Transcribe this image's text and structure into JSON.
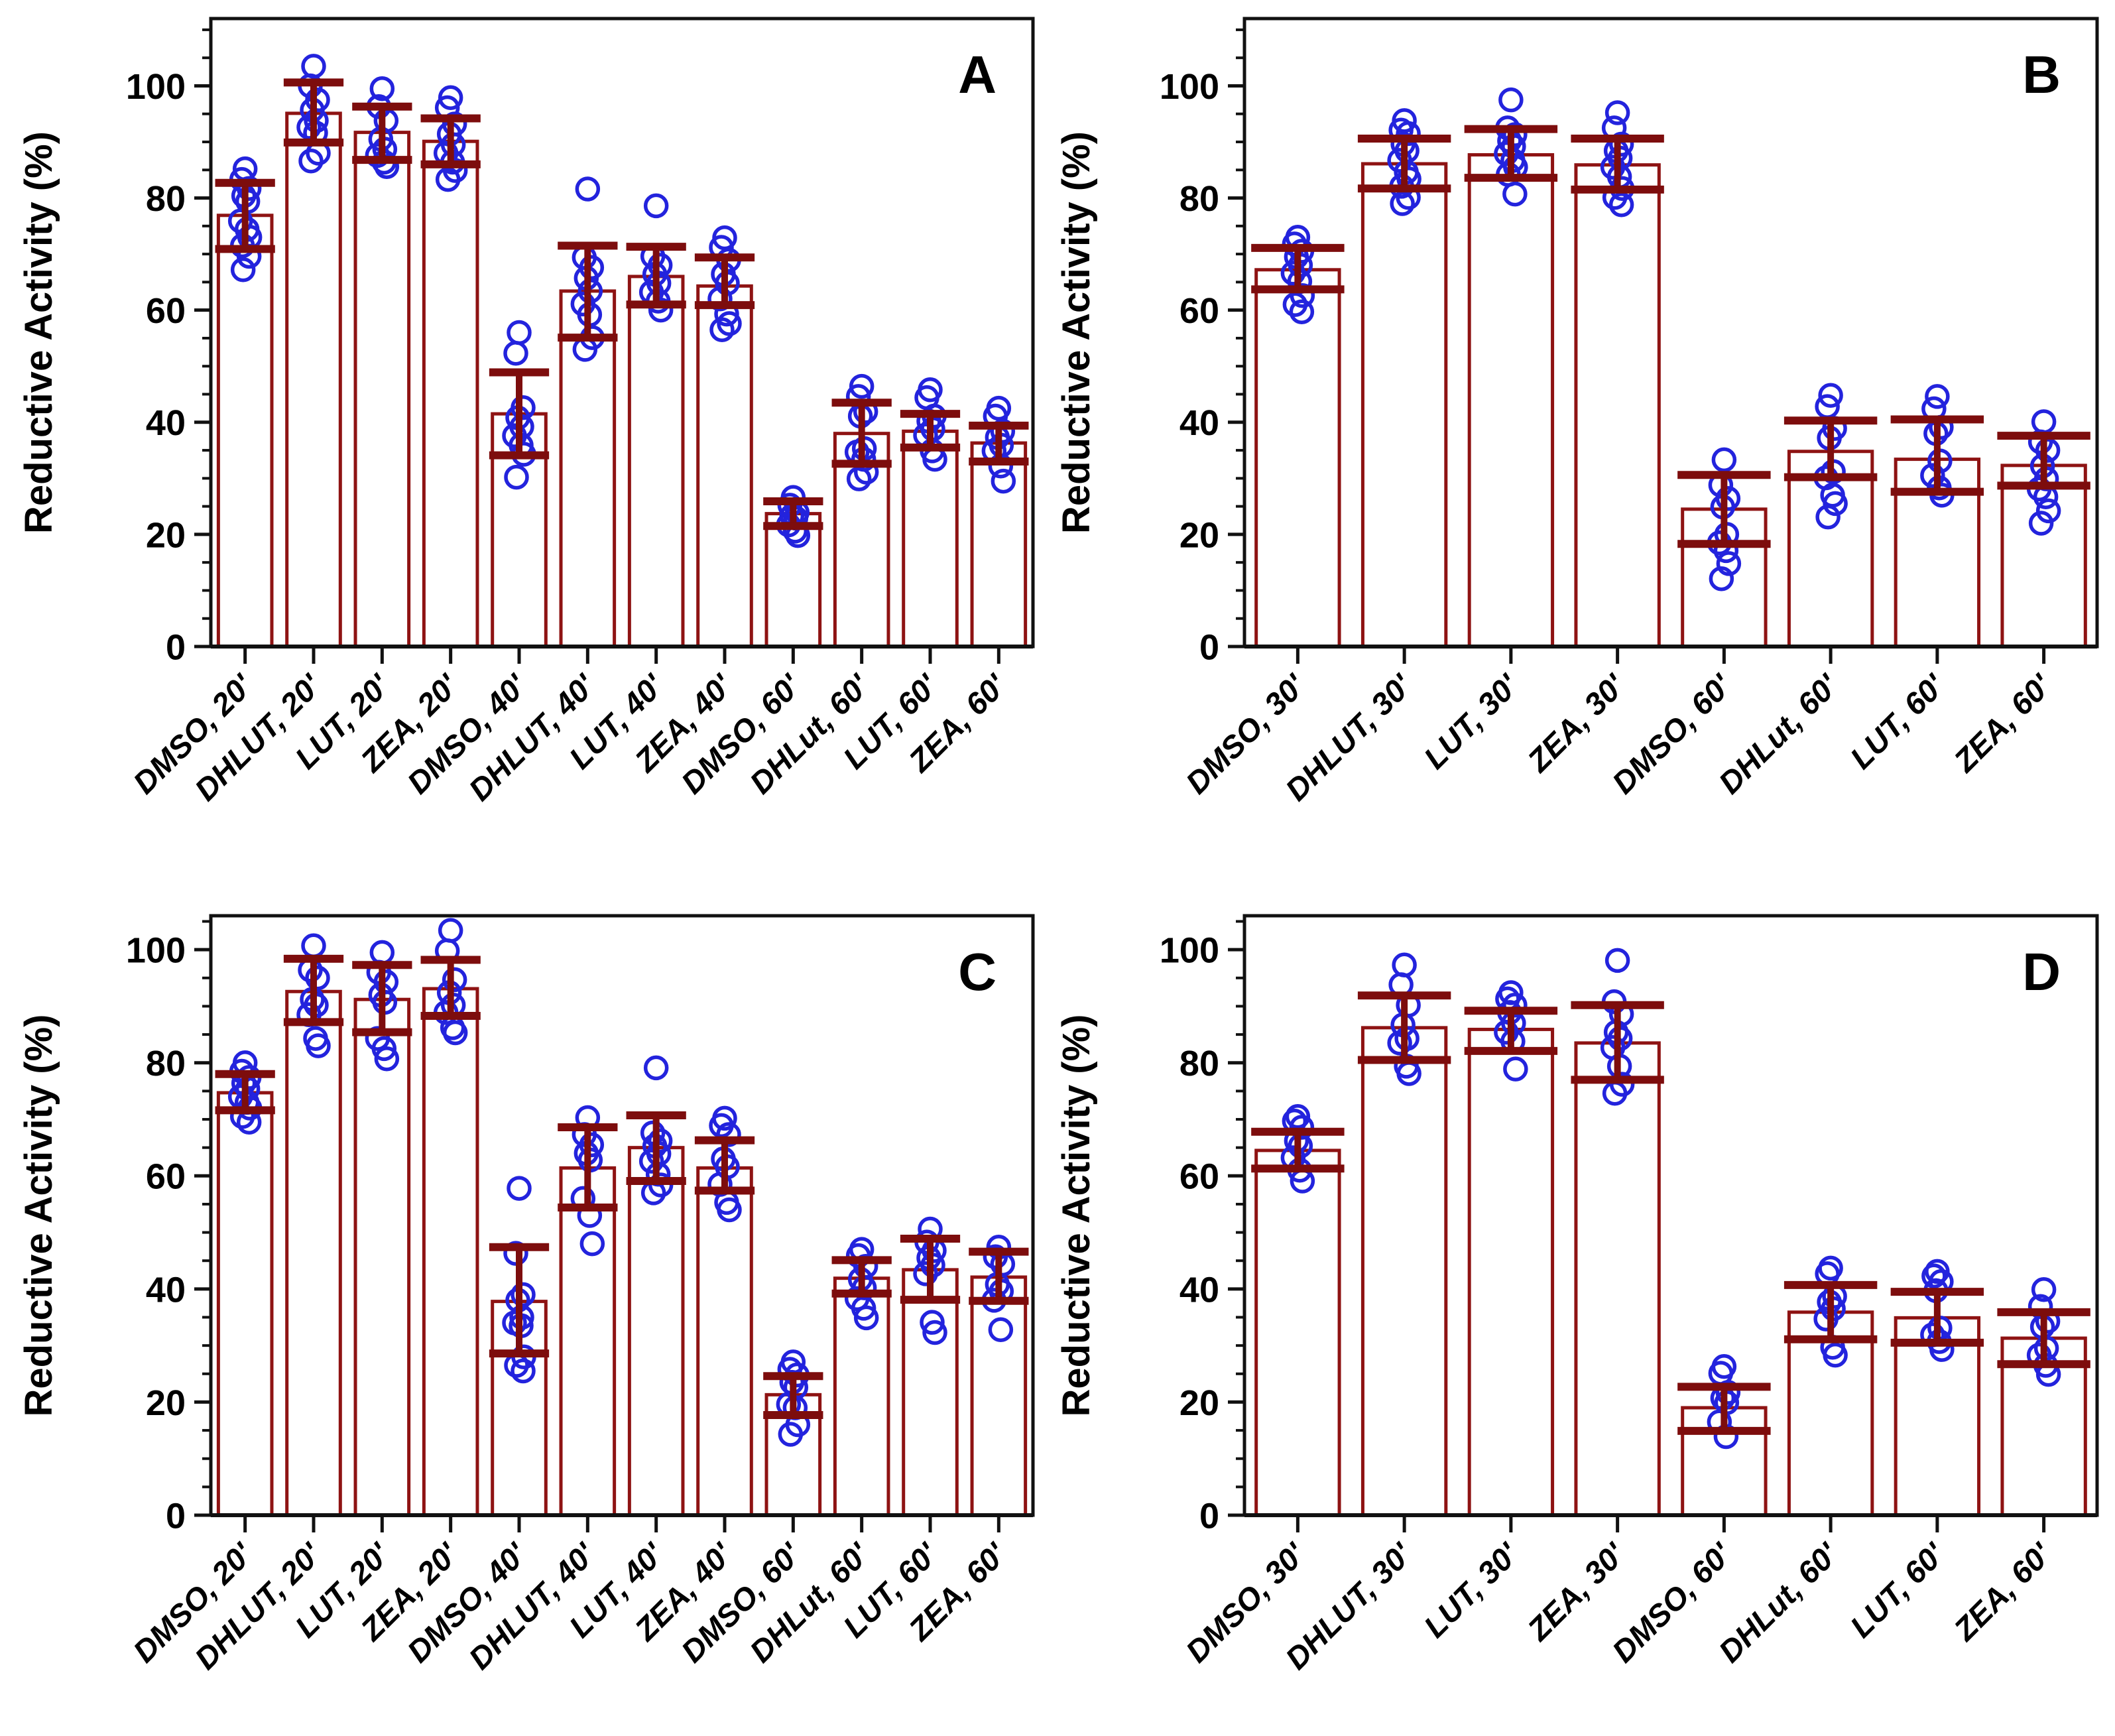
{
  "colors": {
    "bar_outline": "#8e1313",
    "error_bar": "#7d0d0d",
    "point": "#2323dd",
    "axis": "#111111",
    "text": "#000000"
  },
  "chart_data": [
    {
      "type": "bar",
      "panel_label": "A",
      "ylabel": "Reductive Activity (%)",
      "xlabel": "",
      "ylim": [
        0,
        112
      ],
      "yticks": [
        0,
        20,
        40,
        60,
        80,
        100
      ],
      "minor_tick_step": 5,
      "grid": false,
      "legend": "none",
      "categories": [
        "DMSO, 20'",
        "DHLUT, 20'",
        "LUT, 20'",
        "ZEA, 20'",
        "DMSO, 40'",
        "DHLUT, 40'",
        "LUT, 40'",
        "ZEA, 40'",
        "DMSO, 60'",
        "DHLut, 60'",
        "LUT, 60'",
        "ZEA, 60'"
      ],
      "bars": [
        {
          "category": "DMSO, 20'",
          "value": 76.9,
          "err_lo": 70.9,
          "err_hi": 82.7,
          "points": [
            85.2,
            83.3,
            81.7,
            80.4,
            79.4,
            75.9,
            74.4,
            73.0,
            71.5,
            69.6,
            67.2
          ]
        },
        {
          "category": "DHLUT, 20'",
          "value": 95.1,
          "err_lo": 89.9,
          "err_hi": 100.6,
          "points": [
            103.5,
            100.0,
            97.5,
            95.7,
            93.8,
            92.6,
            91.6,
            88.0,
            86.6
          ]
        },
        {
          "category": "LUT, 20'",
          "value": 91.7,
          "err_lo": 86.8,
          "err_hi": 96.3,
          "points": [
            99.5,
            96.3,
            93.8,
            90.5,
            88.7,
            87.6,
            86.4,
            85.6
          ]
        },
        {
          "category": "ZEA, 20'",
          "value": 90.1,
          "err_lo": 86.0,
          "err_hi": 94.2,
          "points": [
            97.9,
            96.1,
            93.2,
            91.4,
            89.5,
            88.0,
            86.4,
            84.9,
            83.3
          ]
        },
        {
          "category": "DMSO, 40'",
          "value": 41.5,
          "err_lo": 34.1,
          "err_hi": 48.9,
          "points": [
            56.0,
            52.3,
            42.6,
            40.8,
            39.2,
            37.6,
            35.9,
            34.3,
            30.2
          ]
        },
        {
          "category": "DHLUT, 40'",
          "value": 63.4,
          "err_lo": 55.1,
          "err_hi": 71.5,
          "points": [
            81.6,
            69.4,
            67.6,
            65.7,
            63.4,
            61.1,
            59.2,
            55.1,
            53.0
          ]
        },
        {
          "category": "LUT, 40'",
          "value": 66.0,
          "err_lo": 61.0,
          "err_hi": 71.3,
          "points": [
            78.6,
            69.6,
            68.0,
            66.4,
            64.8,
            63.2,
            61.6,
            60.0
          ]
        },
        {
          "category": "ZEA, 40'",
          "value": 64.3,
          "err_lo": 60.9,
          "err_hi": 69.4,
          "points": [
            72.9,
            71.2,
            68.9,
            66.4,
            64.8,
            62.0,
            59.3,
            57.6,
            56.5
          ]
        },
        {
          "category": "DMSO, 60'",
          "value": 23.7,
          "err_lo": 21.5,
          "err_hi": 25.9,
          "points": [
            26.6,
            25.2,
            23.9,
            23.3,
            22.9,
            21.7,
            20.6,
            19.8
          ]
        },
        {
          "category": "DHLut, 60'",
          "value": 38.0,
          "err_lo": 32.6,
          "err_hi": 43.5,
          "points": [
            46.4,
            44.6,
            41.9,
            41.1,
            35.3,
            34.7,
            33.4,
            31.1,
            29.9
          ]
        },
        {
          "category": "LUT, 60'",
          "value": 38.4,
          "err_lo": 35.5,
          "err_hi": 41.5,
          "points": [
            45.8,
            44.4,
            41.1,
            40.2,
            38.8,
            37.7,
            34.9,
            33.4
          ]
        },
        {
          "category": "ZEA, 60'",
          "value": 36.3,
          "err_lo": 33.0,
          "err_hi": 39.4,
          "points": [
            42.5,
            41.1,
            38.4,
            37.3,
            35.9,
            34.9,
            32.2,
            29.5
          ]
        }
      ]
    },
    {
      "type": "bar",
      "panel_label": "B",
      "ylabel": "Reductive Activity (%)",
      "xlabel": "",
      "ylim": [
        0,
        112
      ],
      "yticks": [
        0,
        20,
        40,
        60,
        80,
        100
      ],
      "minor_tick_step": 5,
      "grid": false,
      "legend": "none",
      "categories": [
        "DMSO, 30'",
        "DHLUT, 30'",
        "LUT, 30'",
        "ZEA, 30'",
        "DMSO, 60'",
        "DHLut, 60'",
        "LUT, 60'",
        "ZEA, 60'"
      ],
      "bars": [
        {
          "category": "DMSO, 30'",
          "value": 67.2,
          "err_lo": 63.7,
          "err_hi": 71.1,
          "points": [
            73.0,
            71.8,
            70.5,
            69.5,
            68.0,
            66.6,
            65.1,
            62.6,
            61.0,
            59.7
          ]
        },
        {
          "category": "DHLUT, 30'",
          "value": 86.1,
          "err_lo": 81.7,
          "err_hi": 90.6,
          "points": [
            93.8,
            92.1,
            91.5,
            89.6,
            88.4,
            86.7,
            84.6,
            83.4,
            82.1,
            80.1,
            79.0
          ]
        },
        {
          "category": "LUT, 30'",
          "value": 87.7,
          "err_lo": 83.6,
          "err_hi": 92.3,
          "points": [
            97.5,
            92.5,
            91.3,
            90.2,
            89.2,
            87.9,
            86.7,
            85.5,
            84.2,
            80.7
          ]
        },
        {
          "category": "ZEA, 30'",
          "value": 85.9,
          "err_lo": 81.5,
          "err_hi": 90.6,
          "points": [
            95.2,
            92.5,
            89.6,
            88.4,
            87.1,
            85.5,
            83.8,
            81.7,
            80.1,
            78.8
          ]
        },
        {
          "category": "DMSO, 60'",
          "value": 24.5,
          "err_lo": 18.3,
          "err_hi": 30.6,
          "points": [
            33.3,
            28.8,
            26.4,
            24.9,
            20.0,
            18.5,
            17.1,
            14.8,
            12.1
          ]
        },
        {
          "category": "DHLut, 60'",
          "value": 34.8,
          "err_lo": 30.2,
          "err_hi": 40.3,
          "points": [
            44.8,
            42.8,
            38.9,
            37.2,
            31.2,
            30.1,
            27.0,
            25.5,
            23.1
          ]
        },
        {
          "category": "LUT, 60'",
          "value": 33.4,
          "err_lo": 27.6,
          "err_hi": 40.5,
          "points": [
            44.6,
            42.4,
            39.1,
            38.0,
            33.1,
            30.5,
            28.3,
            27.0
          ]
        },
        {
          "category": "ZEA, 60'",
          "value": 32.3,
          "err_lo": 28.7,
          "err_hi": 37.6,
          "points": [
            40.1,
            36.5,
            35.0,
            32.2,
            29.9,
            28.1,
            26.7,
            24.2,
            22.0
          ]
        }
      ]
    },
    {
      "type": "bar",
      "panel_label": "C",
      "ylabel": "Reductive Activity (%)",
      "xlabel": "",
      "ylim": [
        0,
        106
      ],
      "yticks": [
        0,
        20,
        40,
        60,
        80,
        100
      ],
      "minor_tick_step": 5,
      "grid": false,
      "legend": "none",
      "categories": [
        "DMSO, 20'",
        "DHLUT, 20'",
        "LUT, 20'",
        "ZEA, 20'",
        "DMSO, 40'",
        "DHLUT, 40'",
        "LUT, 40'",
        "ZEA, 40'",
        "DMSO, 60'",
        "DHLut, 60'",
        "LUT, 60'",
        "ZEA, 60'"
      ],
      "bars": [
        {
          "category": "DMSO, 20'",
          "value": 74.7,
          "err_lo": 71.6,
          "err_hi": 78.0,
          "points": [
            80.0,
            78.5,
            77.4,
            76.4,
            75.4,
            74.0,
            73.0,
            72.0,
            70.5,
            69.5
          ]
        },
        {
          "category": "DHLUT, 20'",
          "value": 92.6,
          "err_lo": 87.2,
          "err_hi": 98.4,
          "points": [
            100.7,
            96.4,
            95.0,
            91.2,
            90.2,
            88.5,
            84.3,
            83.0
          ]
        },
        {
          "category": "LUT, 20'",
          "value": 91.2,
          "err_lo": 85.4,
          "err_hi": 97.3,
          "points": [
            99.5,
            96.0,
            94.3,
            92.0,
            90.7,
            84.3,
            82.5,
            80.7
          ]
        },
        {
          "category": "ZEA, 20'",
          "value": 93.1,
          "err_lo": 88.3,
          "err_hi": 98.2,
          "points": [
            103.4,
            99.8,
            94.7,
            92.4,
            90.2,
            88.9,
            86.2,
            85.3
          ]
        },
        {
          "category": "DMSO, 40'",
          "value": 37.8,
          "err_lo": 28.6,
          "err_hi": 47.4,
          "points": [
            57.8,
            46.3,
            39.0,
            38.0,
            35.0,
            34.0,
            33.5,
            28.0,
            26.5,
            25.5
          ]
        },
        {
          "category": "DHLUT, 40'",
          "value": 61.4,
          "err_lo": 54.4,
          "err_hi": 68.6,
          "points": [
            70.3,
            67.3,
            65.5,
            64.0,
            62.8,
            56.0,
            53.0,
            48.0
          ]
        },
        {
          "category": "LUT, 40'",
          "value": 65.0,
          "err_lo": 59.1,
          "err_hi": 70.7,
          "points": [
            79.1,
            67.6,
            66.2,
            65.3,
            63.9,
            62.6,
            60.3,
            58.4,
            57.0
          ]
        },
        {
          "category": "ZEA, 40'",
          "value": 61.4,
          "err_lo": 57.4,
          "err_hi": 66.3,
          "points": [
            70.2,
            68.9,
            67.3,
            63.0,
            61.6,
            58.5,
            55.3,
            54.0
          ]
        },
        {
          "category": "DMSO, 60'",
          "value": 21.3,
          "err_lo": 17.7,
          "err_hi": 24.6,
          "points": [
            27.1,
            25.8,
            24.8,
            23.5,
            22.6,
            19.6,
            19.0,
            16.0,
            14.3
          ]
        },
        {
          "category": "DHLut, 60'",
          "value": 41.9,
          "err_lo": 39.2,
          "err_hi": 45.1,
          "points": [
            47.0,
            45.9,
            44.0,
            41.7,
            40.2,
            38.3,
            36.6,
            34.9
          ]
        },
        {
          "category": "LUT, 60'",
          "value": 43.4,
          "err_lo": 38.1,
          "err_hi": 48.9,
          "points": [
            50.6,
            48.3,
            46.8,
            45.5,
            44.2,
            42.7,
            34.1,
            32.3
          ]
        },
        {
          "category": "ZEA, 60'",
          "value": 42.1,
          "err_lo": 37.9,
          "err_hi": 46.6,
          "points": [
            47.4,
            45.7,
            44.4,
            40.8,
            39.6,
            38.0,
            32.8
          ]
        }
      ]
    },
    {
      "type": "bar",
      "panel_label": "D",
      "ylabel": "Reductive Activity (%)",
      "xlabel": "",
      "ylim": [
        0,
        106
      ],
      "yticks": [
        0,
        20,
        40,
        60,
        80,
        100
      ],
      "minor_tick_step": 5,
      "grid": false,
      "legend": "none",
      "categories": [
        "DMSO, 30'",
        "DHLUT, 30'",
        "LUT, 30'",
        "ZEA, 30'",
        "DMSO, 60'",
        "DHLut, 60'",
        "LUT, 60'",
        "ZEA, 60'"
      ],
      "bars": [
        {
          "category": "DMSO, 30'",
          "value": 64.5,
          "err_lo": 61.3,
          "err_hi": 67.8,
          "points": [
            70.5,
            69.7,
            68.6,
            66.2,
            65.3,
            63.2,
            61.0,
            59.1
          ]
        },
        {
          "category": "DHLUT, 30'",
          "value": 86.2,
          "err_lo": 80.5,
          "err_hi": 91.9,
          "points": [
            97.3,
            93.8,
            90.2,
            86.7,
            84.3,
            83.5,
            79.4,
            78.1
          ]
        },
        {
          "category": "LUT, 30'",
          "value": 85.9,
          "err_lo": 82.1,
          "err_hi": 89.2,
          "points": [
            92.4,
            91.3,
            90.2,
            88.9,
            87.0,
            85.4,
            83.8,
            78.9
          ]
        },
        {
          "category": "ZEA, 30'",
          "value": 83.5,
          "err_lo": 77.0,
          "err_hi": 90.2,
          "points": [
            98.1,
            90.8,
            88.6,
            85.4,
            84.3,
            82.7,
            79.4,
            76.2,
            74.6
          ]
        },
        {
          "category": "DMSO, 60'",
          "value": 19.0,
          "err_lo": 14.9,
          "err_hi": 22.7,
          "points": [
            26.3,
            25.1,
            21.7,
            20.7,
            19.9,
            16.5,
            13.9
          ]
        },
        {
          "category": "DHLut, 60'",
          "value": 35.9,
          "err_lo": 31.1,
          "err_hi": 40.7,
          "points": [
            43.7,
            42.7,
            38.7,
            37.7,
            36.5,
            34.7,
            29.7,
            28.3
          ]
        },
        {
          "category": "LUT, 60'",
          "value": 34.9,
          "err_lo": 30.5,
          "err_hi": 39.5,
          "points": [
            43.1,
            42.3,
            41.3,
            39.7,
            33.1,
            31.9,
            30.7,
            29.3
          ]
        },
        {
          "category": "ZEA, 60'",
          "value": 31.3,
          "err_lo": 26.7,
          "err_hi": 35.9,
          "points": [
            39.9,
            36.9,
            34.3,
            33.3,
            29.5,
            28.3,
            26.5,
            24.9
          ]
        }
      ]
    }
  ]
}
